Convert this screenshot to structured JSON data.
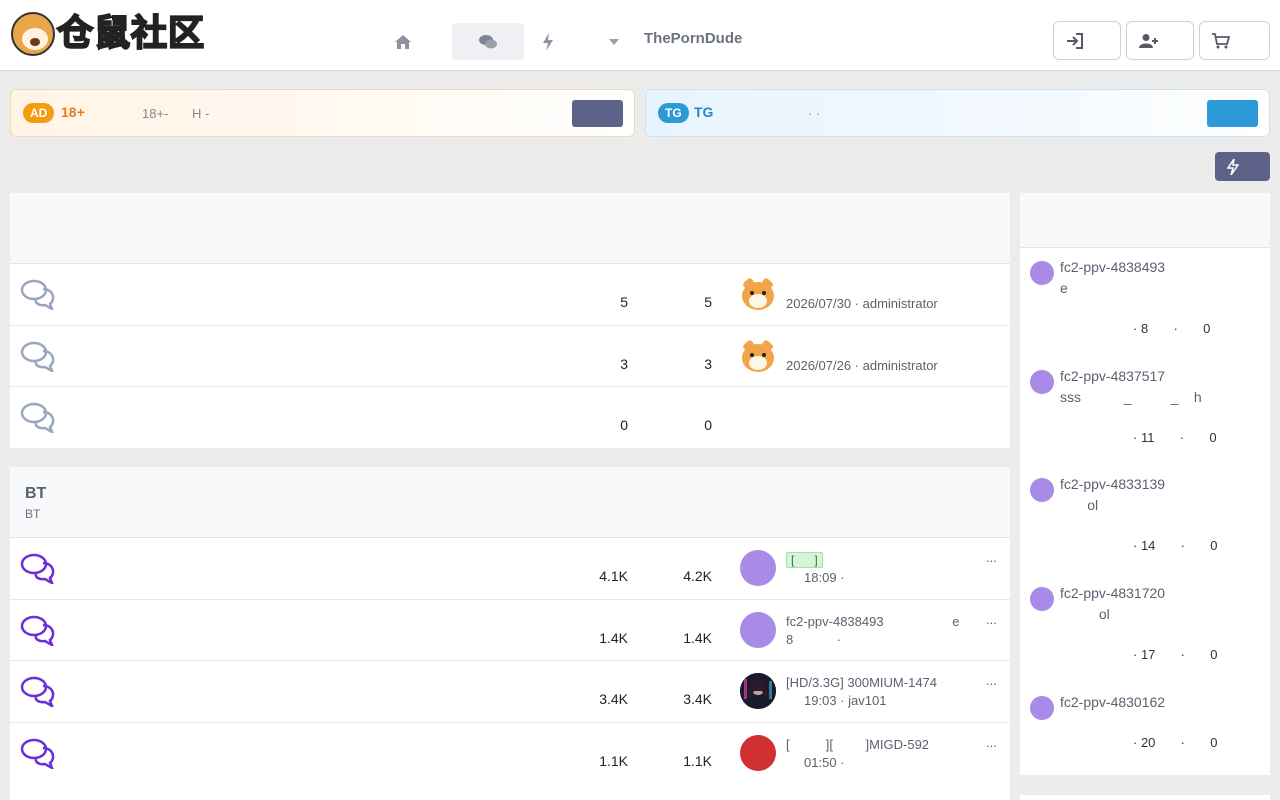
{
  "header": {
    "logo_text": [
      "仓",
      "鼠",
      "社",
      "区"
    ],
    "nav_link": "ThePornDude",
    "icons": {
      "home": "home-icon",
      "chat": "chat-icon",
      "bolt": "bolt-icon",
      "caret": "caret-down-icon",
      "login": "login-icon",
      "register": "user-plus-icon",
      "cart": "cart-icon"
    }
  },
  "ads": {
    "left": {
      "badge": "AD",
      "title": "18+",
      "desc1": "18+-",
      "desc2": "H  -",
      "accent": "#f39c12"
    },
    "right": {
      "badge": "TG",
      "title": "TG",
      "desc": "·        ·",
      "accent": "#2b9ad6"
    }
  },
  "forum_a": {
    "rows": [
      {
        "threads": "5",
        "posts": "5",
        "last_meta": "2026/07/30 · administrator",
        "avatar": "hamster"
      },
      {
        "threads": "3",
        "posts": "3",
        "last_meta": "2026/07/26 · administrator",
        "avatar": "hamster"
      },
      {
        "threads": "0",
        "posts": "0",
        "last_meta": "",
        "avatar": ""
      }
    ]
  },
  "forum_b": {
    "title": "BT",
    "subtitle": "BT",
    "rows": [
      {
        "threads": "4.1K",
        "posts": "4.2K",
        "line1_tag": "[      ]",
        "line2": "     18:09 ·",
        "more": "...",
        "avatar_color": "#a78be6"
      },
      {
        "threads": "1.4K",
        "posts": "1.4K",
        "line1": "fc2-ppv-4838493                   e",
        "line2": "8            ·",
        "more": "...",
        "avatar_color": "#a78be6"
      },
      {
        "threads": "3.4K",
        "posts": "3.4K",
        "line1": "[HD/3.3G] 300MIUM-1474",
        "line2": "     19:03 · jav101",
        "more": "...",
        "avatar_color": "#1a1a2e"
      },
      {
        "threads": "1.1K",
        "posts": "1.1K",
        "line1": "[          ][         ]MIGD-592",
        "line2": "     01:50 ·",
        "more": "...",
        "avatar_color": "#d03030"
      }
    ]
  },
  "sidebar": {
    "items": [
      {
        "title": "fc2-ppv-4838493\ne",
        "stats": "· 8       ·       0"
      },
      {
        "title": "fc2-ppv-4837517\nsss           _          _    h",
        "stats": "· 11       ·       0"
      },
      {
        "title": "fc2-ppv-4833139\n       ol",
        "stats": "· 14       ·       0"
      },
      {
        "title": "fc2-ppv-4831720\n          ol",
        "stats": "· 17       ·       0"
      },
      {
        "title": "fc2-ppv-4830162",
        "stats": "· 20       ·       0"
      }
    ]
  },
  "colors": {
    "forum_icon_inactive": "#9aa5bf",
    "forum_icon_active": "#6a2fd8",
    "avatar_default": "#a78be6"
  }
}
